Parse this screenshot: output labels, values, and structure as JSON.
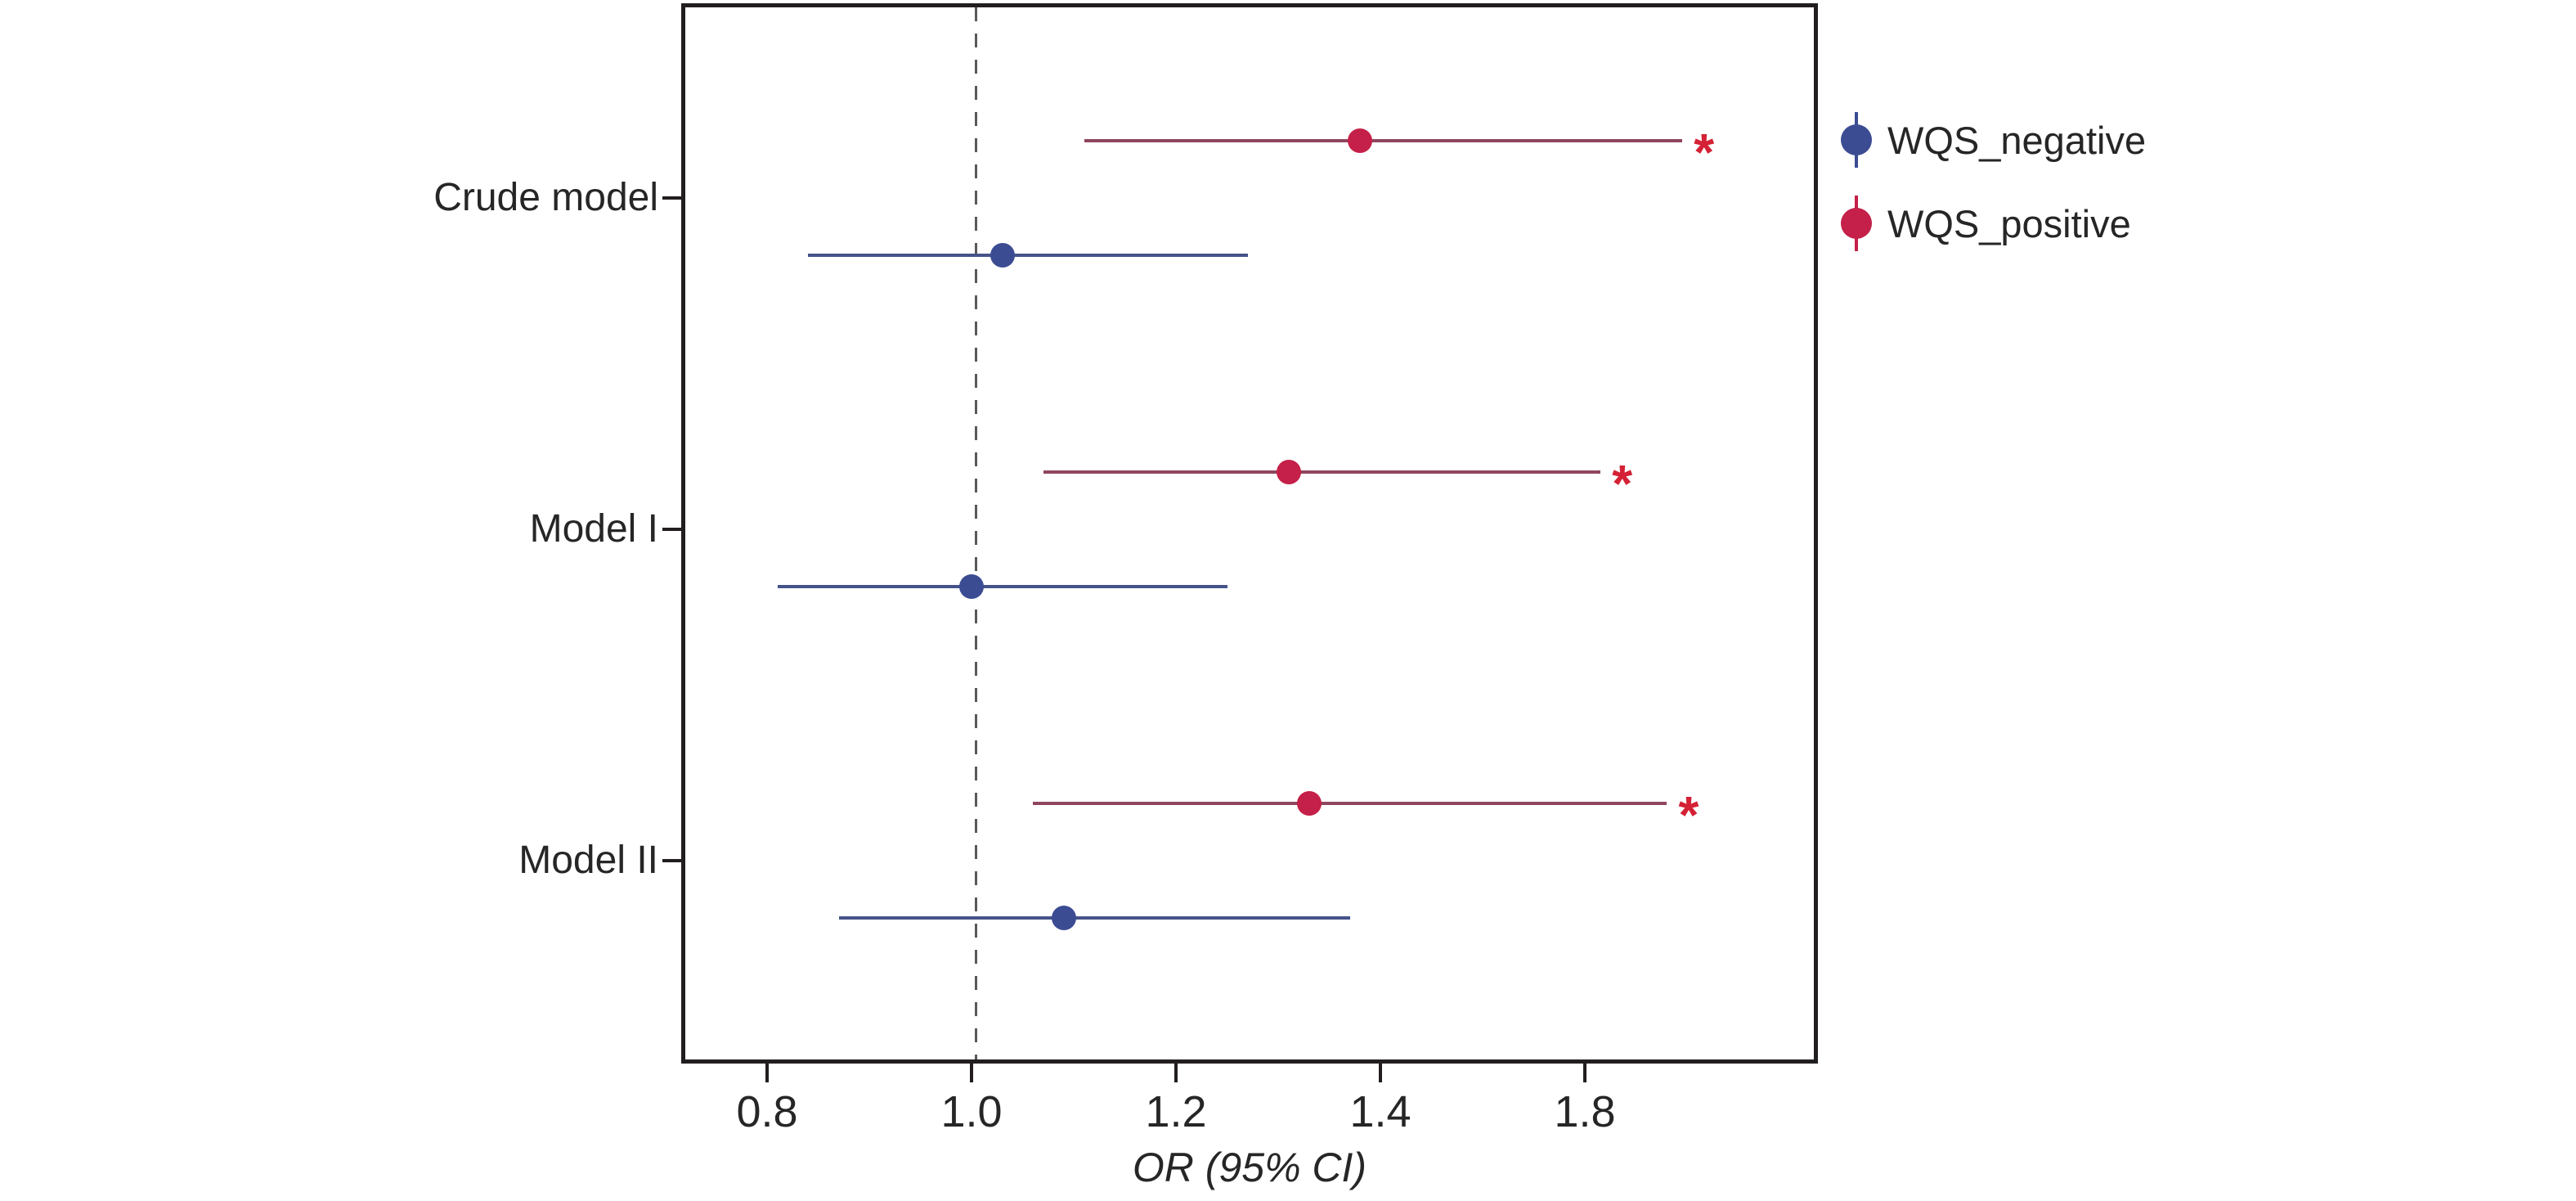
{
  "chart_data": {
    "type": "forest-pointrange",
    "title": "",
    "xlabel": "OR (95% CI)",
    "x_ticks": [
      0.8,
      1.0,
      1.2,
      1.4,
      1.8
    ],
    "x_tick_labels": [
      "0.8",
      "1.0",
      "1.2",
      "1.4",
      "1.8"
    ],
    "reference_line_x": 1.0,
    "grid": "off",
    "categories": [
      "Crude model",
      "Model I",
      "Model II"
    ],
    "significance_marker": "*",
    "significance_color": "#d42135",
    "axis_color": "#221e1f",
    "reference_line_color": "#595959",
    "legend_position": "right",
    "series": [
      {
        "name": "WQS_negative",
        "point_color": "#3b4c93",
        "line_color": "#46538a",
        "row": "lower",
        "points": [
          {
            "category": "Crude model",
            "or": 1.03,
            "ci_low": 0.84,
            "ci_high": 1.27,
            "significant": false
          },
          {
            "category": "Model I",
            "or": 1.0,
            "ci_low": 0.81,
            "ci_high": 1.25,
            "significant": false
          },
          {
            "category": "Model II",
            "or": 1.09,
            "ci_low": 0.87,
            "ci_high": 1.37,
            "significant": false
          }
        ]
      },
      {
        "name": "WQS_positive",
        "point_color": "#c42049",
        "line_color": "#8f465f",
        "row": "upper",
        "points": [
          {
            "category": "Crude model",
            "or": 1.38,
            "ci_low": 1.11,
            "ci_high": 1.99,
            "significant": true
          },
          {
            "category": "Model I",
            "or": 1.31,
            "ci_low": 1.07,
            "ci_high": 1.83,
            "significant": true
          },
          {
            "category": "Model II",
            "or": 1.33,
            "ci_low": 1.06,
            "ci_high": 1.96,
            "significant": true
          }
        ]
      }
    ],
    "legend_entries": [
      {
        "label": "WQS_negative",
        "color": "#3b4c93"
      },
      {
        "label": "WQS_positive",
        "color": "#c42049"
      }
    ]
  }
}
